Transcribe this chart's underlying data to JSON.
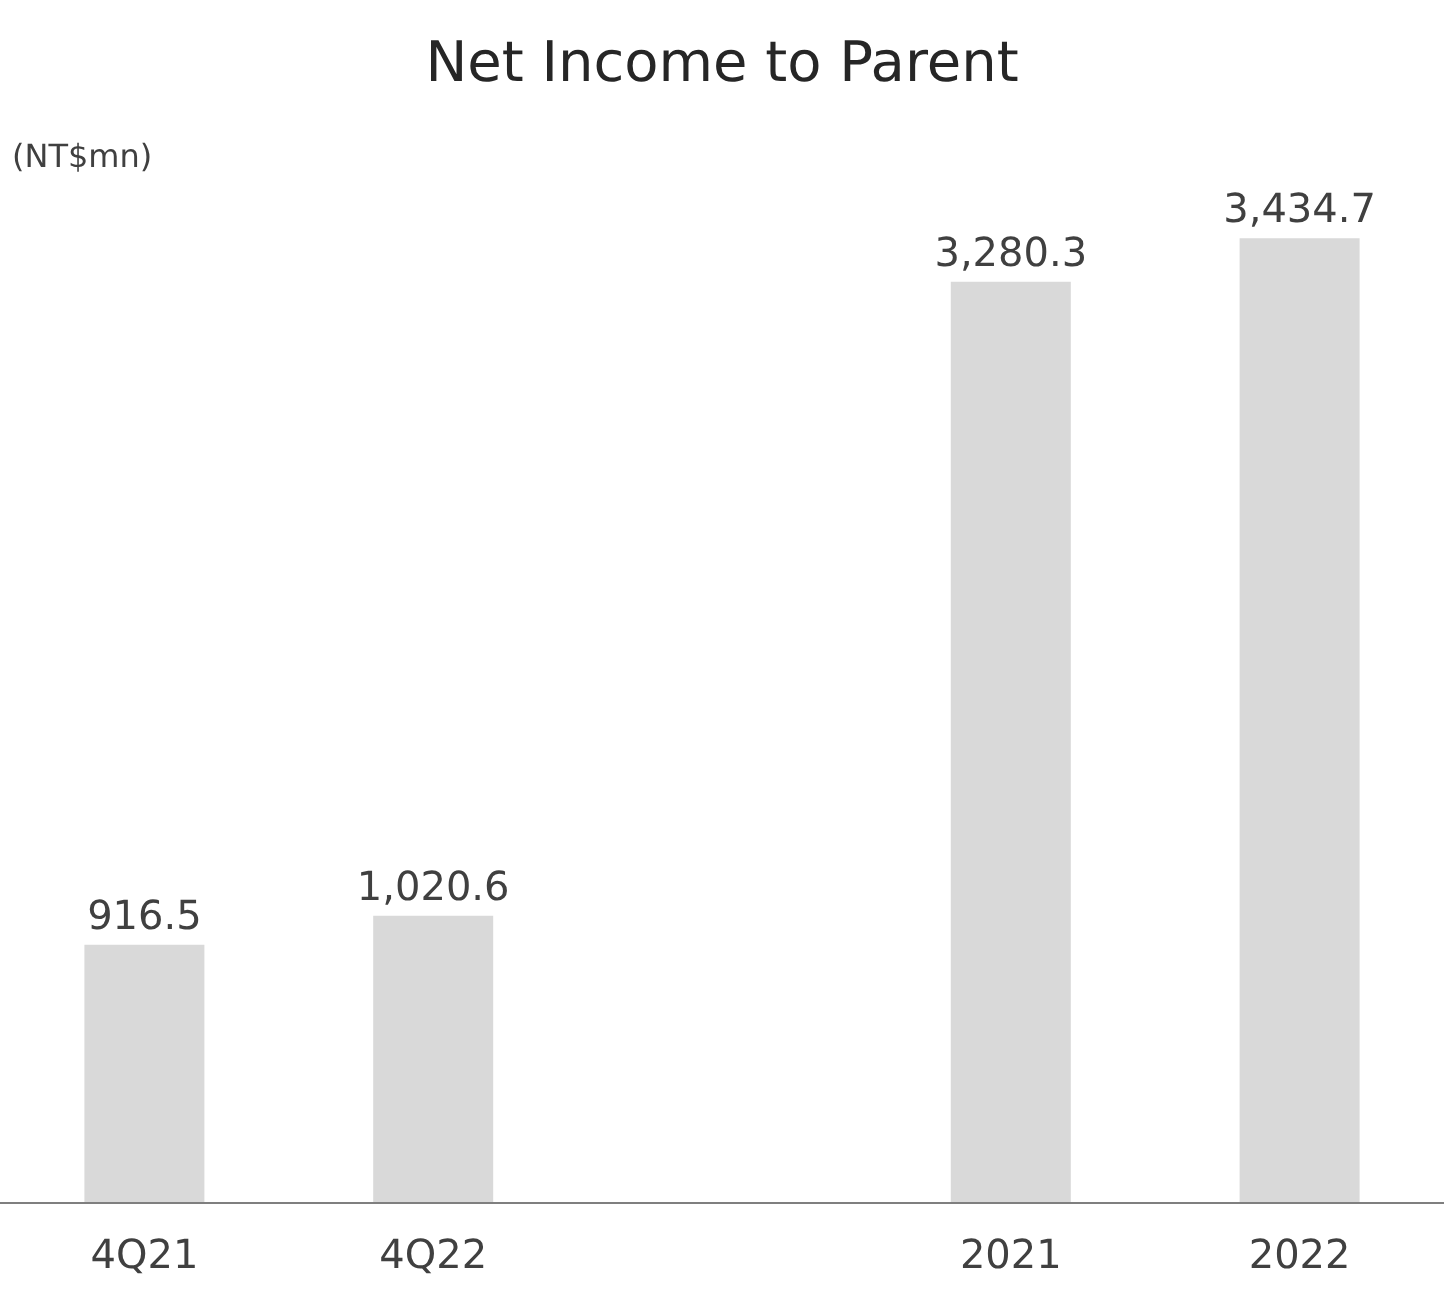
{
  "chart_data": {
    "type": "bar",
    "title": "Net Income to Parent",
    "ylabel": "(NT$mn)",
    "categories": [
      "4Q21",
      "4Q22",
      null,
      "2021",
      "2022"
    ],
    "values": [
      916.5,
      1020.6,
      null,
      3280.3,
      3434.7
    ],
    "value_labels": [
      "916.5",
      "1,020.6",
      null,
      "3,280.3",
      "3,434.7"
    ],
    "color": "#d9d9d9"
  }
}
